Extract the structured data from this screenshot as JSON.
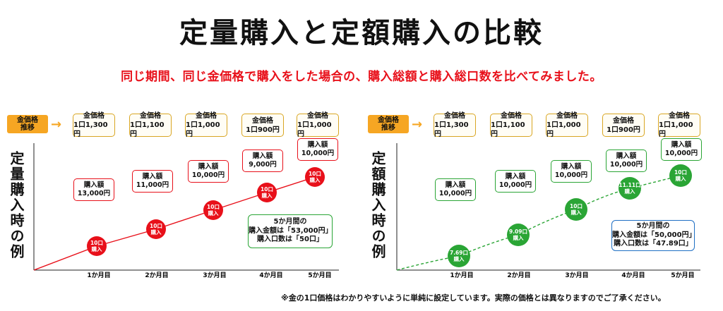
{
  "title": "定量購入と定額購入の比較",
  "subtitle": "同じ期間、同じ金価格で購入をした場合の、購入総額と購入総口数を比べてみました。",
  "legend_tag": [
    "金価格",
    "推移"
  ],
  "prices": [
    {
      "label": "金価格",
      "value": "1口1,300円"
    },
    {
      "label": "金価格",
      "value": "1口1,100円"
    },
    {
      "label": "金価格",
      "value": "1口1,000円"
    },
    {
      "label": "金価格",
      "value": "1口900円"
    },
    {
      "label": "金価格",
      "value": "1口1,000円"
    }
  ],
  "months": [
    "1か月目",
    "2か月目",
    "3か月目",
    "4か月目",
    "5か月目"
  ],
  "left_panel": {
    "ylabel": "定量購入時の例",
    "color": "#e8101a",
    "amounts": [
      {
        "label": "購入額",
        "value": "13,000円"
      },
      {
        "label": "購入額",
        "value": "11,000円"
      },
      {
        "label": "購入額",
        "value": "10,000円"
      },
      {
        "label": "購入額",
        "value": "9,000円"
      },
      {
        "label": "購入額",
        "value": "10,000円"
      }
    ],
    "units": [
      {
        "top": "10口",
        "bottom": "購入"
      },
      {
        "top": "10口",
        "bottom": "購入"
      },
      {
        "top": "10口",
        "bottom": "購入"
      },
      {
        "top": "10口",
        "bottom": "購入"
      },
      {
        "top": "10口",
        "bottom": "購入"
      }
    ],
    "summary": [
      "5か月間の",
      "購入金額は「53,000円」",
      "購入口数は「50口」"
    ]
  },
  "right_panel": {
    "ylabel": "定額購入時の例",
    "color": "#2aa535",
    "amounts": [
      {
        "label": "購入額",
        "value": "10,000円"
      },
      {
        "label": "購入額",
        "value": "10,000円"
      },
      {
        "label": "購入額",
        "value": "10,000円"
      },
      {
        "label": "購入額",
        "value": "10,000円"
      },
      {
        "label": "購入額",
        "value": "10,000円"
      }
    ],
    "units": [
      {
        "top": "7.69口",
        "bottom": "購入"
      },
      {
        "top": "9.09口",
        "bottom": "購入"
      },
      {
        "top": "10口",
        "bottom": "購入"
      },
      {
        "top": "11.11口",
        "bottom": "購入"
      },
      {
        "top": "10口",
        "bottom": "購入"
      }
    ],
    "summary": [
      "5か月間の",
      "購入金額は「50,000円」",
      "購入口数は「47.89口」"
    ]
  },
  "note": "※金の1口価格はわかりやすいように単純に設定しています。実際の価格とは異なりますのでご了承ください。"
}
